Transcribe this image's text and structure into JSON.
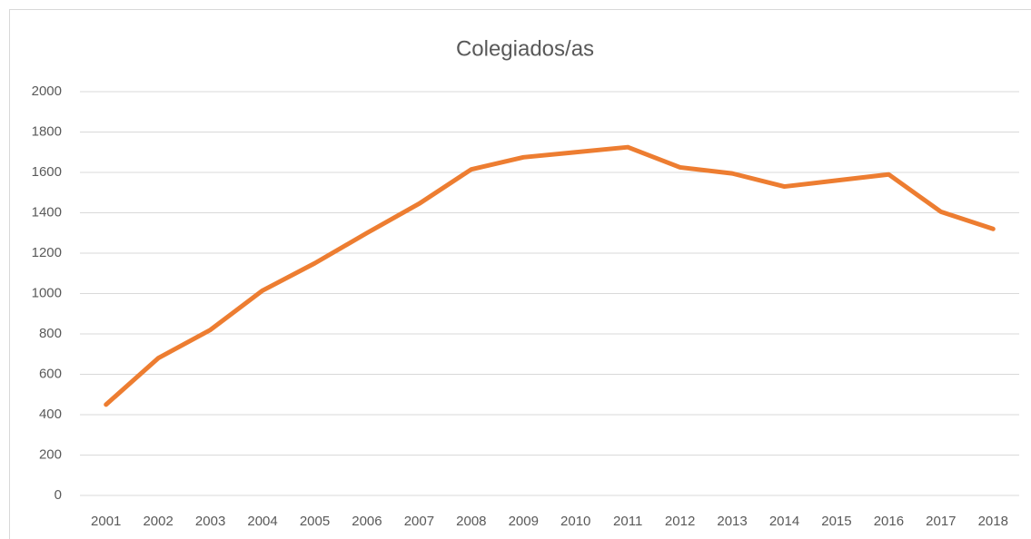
{
  "chart_data": {
    "type": "line",
    "title": "Colegiados/as",
    "categories": [
      "2001",
      "2002",
      "2003",
      "2004",
      "2005",
      "2006",
      "2007",
      "2008",
      "2009",
      "2010",
      "2011",
      "2012",
      "2013",
      "2014",
      "2015",
      "2016",
      "2017",
      "2018"
    ],
    "series": [
      {
        "name": "Colegiados/as",
        "color": "#ed7d31",
        "values": [
          450,
          680,
          820,
          1015,
          1150,
          1300,
          1445,
          1615,
          1675,
          1700,
          1725,
          1625,
          1595,
          1530,
          1560,
          1590,
          1405,
          1320
        ]
      }
    ],
    "ylim": [
      0,
      2000
    ],
    "yticks": [
      0,
      200,
      400,
      600,
      800,
      1000,
      1200,
      1400,
      1600,
      1800,
      2000
    ],
    "grid": true,
    "legend": false
  }
}
